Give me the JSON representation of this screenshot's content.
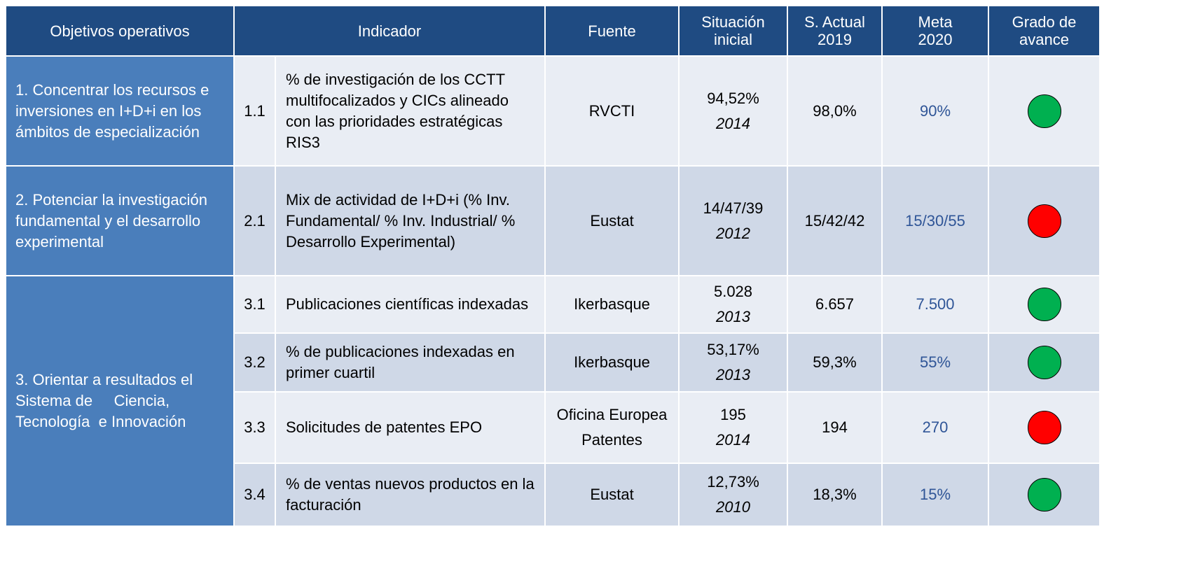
{
  "table": {
    "header": [
      [
        "Objetivos operativos"
      ],
      [
        "Indicador"
      ],
      [
        "Fuente"
      ],
      [
        "Situación",
        "inicial"
      ],
      [
        "S. Actual",
        "2019"
      ],
      [
        "Meta",
        "2020"
      ],
      [
        "Grado de",
        "avance"
      ]
    ],
    "objectives": [
      {
        "label": "1. Concentrar los recursos e inversiones en I+D+i en los ámbitos de especialización",
        "indicators": [
          {
            "id": "1.1",
            "indicator": "% de investigación de los CCTT multifocalizados y CICs alineado con las prioridades estratégicas RIS3",
            "source": "RVCTI",
            "initial": "94,52%",
            "initial_year": "2014",
            "actual": "98,0%",
            "target": "90%",
            "status": "#00b050"
          }
        ]
      },
      {
        "label": "2. Potenciar la investigación fundamental y el desarrollo experimental",
        "indicators": [
          {
            "id": "2.1",
            "indicator": "Mix de actividad de I+D+i (% Inv. Fundamental/ % Inv. Industrial/ % Desarrollo Experimental)",
            "source": "Eustat",
            "initial": "14/47/39",
            "initial_year": "2012",
            "actual": "15/42/42",
            "target": "15/30/55",
            "status": "#ff0000"
          }
        ]
      },
      {
        "label": "3. Orientar a resultados el Sistema de     Ciencia, Tecnología  e Innovación",
        "indicators": [
          {
            "id": "3.1",
            "indicator": "Publicaciones científicas indexadas",
            "source": "Ikerbasque",
            "initial": "5.028",
            "initial_year": "2013",
            "actual": "6.657",
            "target": "7.500",
            "status": "#00b050"
          },
          {
            "id": "3.2",
            "indicator": "% de publicaciones indexadas en primer cuartil",
            "source": "Ikerbasque",
            "initial": "53,17%",
            "initial_year": "2013",
            "actual": "59,3%",
            "target": "55%",
            "status": "#00b050"
          },
          {
            "id": "3.3",
            "indicator": "Solicitudes de patentes EPO",
            "source": "Oficina Europea Patentes",
            "initial": "195",
            "initial_year": "2014",
            "actual": "194",
            "target": "270",
            "status": "#ff0000"
          },
          {
            "id": "3.4",
            "indicator": "% de ventas nuevos productos en la facturación",
            "source": "Eustat",
            "initial": "12,73%",
            "initial_year": "2010",
            "actual": "18,3%",
            "target": "15%",
            "status": "#00b050"
          }
        ]
      }
    ]
  }
}
